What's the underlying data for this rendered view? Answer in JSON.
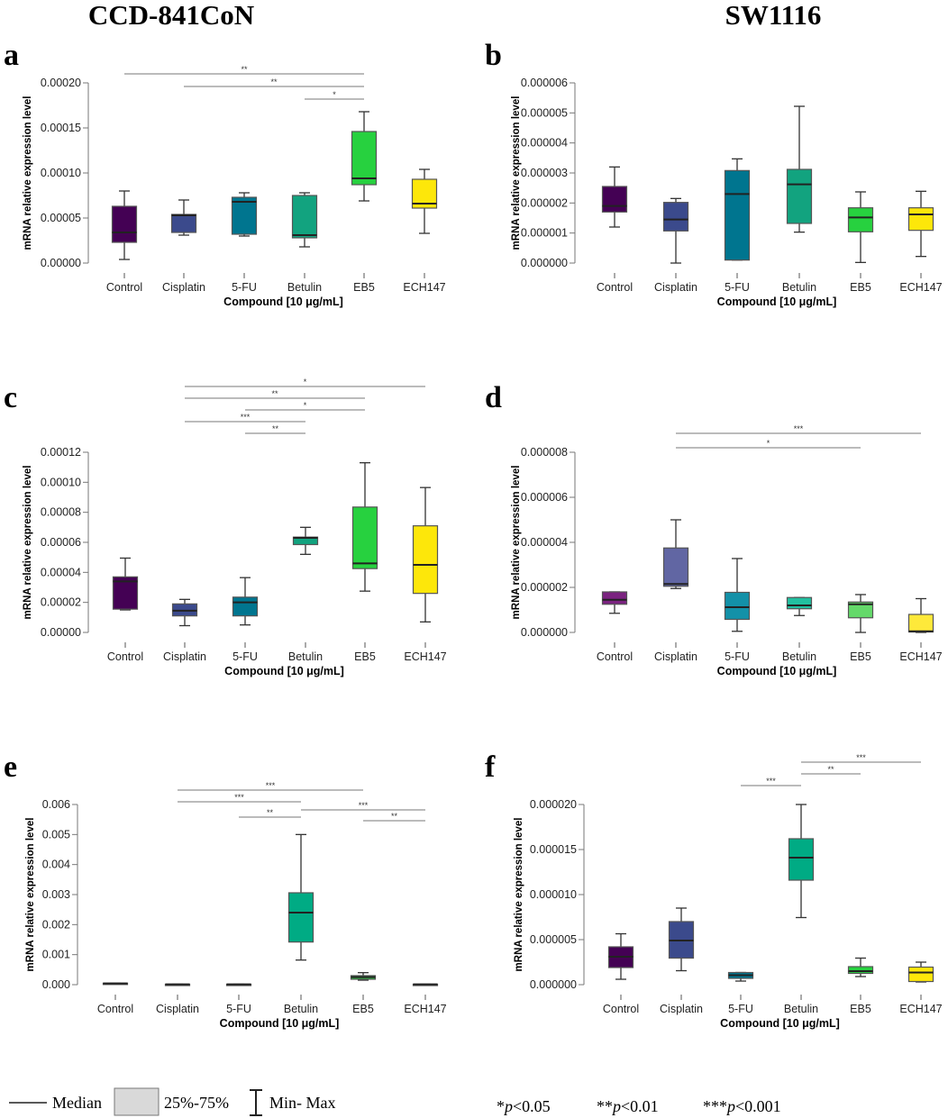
{
  "column_titles": [
    "CCD-841CoN",
    "SW1116"
  ],
  "legend": {
    "median": "Median",
    "iqr": "25%-75%",
    "range": "Min- Max",
    "sig": [
      {
        "stars": "*",
        "p": "p",
        "rest": "<0.05"
      },
      {
        "stars": "**",
        "p": "p",
        "rest": "<0.01"
      },
      {
        "stars": "***",
        "p": "p",
        "rest": "<0.001"
      }
    ]
  },
  "chart_data": [
    {
      "panel": "a",
      "type": "box",
      "cell_line": "CCD-841CoN",
      "ylabel": "mRNA relative expression level",
      "xlabel": "Compound [10 μg/mL]",
      "categories": [
        "Control",
        "Cisplatin",
        "5-FU",
        "Betulin",
        "EB5",
        "ECH147"
      ],
      "ylim": [
        0,
        0.0002
      ],
      "yticks": [
        "0.00000",
        "0.00005",
        "0.00010",
        "0.00015",
        "0.00020"
      ],
      "colors": [
        "#440154",
        "#3b4a8c",
        "#00758f",
        "#12a37f",
        "#27d13f",
        "#fde70a"
      ],
      "boxes": [
        [
          4e-06,
          2.3e-05,
          3.4e-05,
          6.3e-05,
          8e-05
        ],
        [
          3.1e-05,
          3.4e-05,
          5.3e-05,
          5.4e-05,
          7e-05
        ],
        [
          3e-05,
          3.2e-05,
          6.8e-05,
          7.3e-05,
          7.8e-05
        ],
        [
          1.8e-05,
          2.8e-05,
          3.1e-05,
          7.5e-05,
          7.8e-05
        ],
        [
          6.9e-05,
          8.7e-05,
          9.4e-05,
          0.000146,
          0.000168
        ],
        [
          3.3e-05,
          6.1e-05,
          6.6e-05,
          9.3e-05,
          0.000104
        ]
      ],
      "significance": [
        {
          "from": "Control",
          "to": "EB5",
          "label": "**"
        },
        {
          "from": "Cisplatin",
          "to": "EB5",
          "label": "**"
        },
        {
          "from": "Betulin",
          "to": "EB5",
          "label": "*"
        }
      ]
    },
    {
      "panel": "b",
      "type": "box",
      "cell_line": "SW1116",
      "ylabel": "mRNA relative expression level",
      "xlabel": "Compound [10 μg/mL]",
      "categories": [
        "Control",
        "Cisplatin",
        "5-FU",
        "Betulin",
        "EB5",
        "ECH147"
      ],
      "ylim": [
        0,
        6e-06
      ],
      "yticks": [
        "0.000000",
        "0.000001",
        "0.000002",
        "0.000003",
        "0.000004",
        "0.000005",
        "0.000006"
      ],
      "colors": [
        "#440154",
        "#3b4a8c",
        "#00758f",
        "#12a37f",
        "#27d13f",
        "#fde70a"
      ],
      "boxes": [
        [
          1.2e-06,
          1.7e-06,
          1.9e-06,
          2.55e-06,
          3.2e-06
        ],
        [
          0.0,
          1.07e-06,
          1.45e-06,
          2.02e-06,
          2.15e-06
        ],
        [
          1e-07,
          1e-07,
          2.3e-06,
          3.08e-06,
          3.47e-06
        ],
        [
          1.03e-06,
          1.32e-06,
          2.62e-06,
          3.12e-06,
          5.22e-06
        ],
        [
          2e-08,
          1.04e-06,
          1.52e-06,
          1.84e-06,
          2.37e-06
        ],
        [
          2.2e-07,
          1.09e-06,
          1.62e-06,
          1.84e-06,
          2.39e-06
        ]
      ],
      "significance": []
    },
    {
      "panel": "c",
      "type": "box",
      "cell_line": "CCD-841CoN",
      "ylabel": "mRNA relative expression level",
      "xlabel": "Compound [10 μg/mL]",
      "categories": [
        "Control",
        "Cisplatin",
        "5-FU",
        "Betulin",
        "EB5",
        "ECH147"
      ],
      "ylim": [
        0,
        0.00012
      ],
      "yticks": [
        "0.00000",
        "0.00002",
        "0.00004",
        "0.00006",
        "0.00008",
        "0.00010",
        "0.00012"
      ],
      "colors": [
        "#440154",
        "#3b4a8c",
        "#00758f",
        "#12a37f",
        "#27d13f",
        "#fde70a"
      ],
      "boxes": [
        [
          1.5e-05,
          1.55e-05,
          3.4e-05,
          3.7e-05,
          4.95e-05
        ],
        [
          4.5e-06,
          1.1e-05,
          1.45e-05,
          1.9e-05,
          2.2e-05
        ],
        [
          5e-06,
          1.1e-05,
          2e-05,
          2.35e-05,
          3.65e-05
        ],
        [
          5.2e-05,
          5.85e-05,
          6.3e-05,
          6.35e-05,
          7e-05
        ],
        [
          2.75e-05,
          4.25e-05,
          4.6e-05,
          8.35e-05,
          0.000113
        ],
        [
          7e-06,
          2.6e-05,
          4.5e-05,
          7.1e-05,
          9.65e-05
        ]
      ],
      "significance": [
        {
          "from": "Cisplatin",
          "to": "ECH147",
          "label": "*"
        },
        {
          "from": "Cisplatin",
          "to": "EB5",
          "label": "**"
        },
        {
          "from": "5-FU",
          "to": "EB5",
          "label": "*"
        },
        {
          "from": "Cisplatin",
          "to": "Betulin",
          "label": "***"
        },
        {
          "from": "5-FU",
          "to": "Betulin",
          "label": "**"
        }
      ]
    },
    {
      "panel": "d",
      "type": "box",
      "cell_line": "SW1116",
      "ylabel": "mRNA relative expression level",
      "xlabel": "Compound [10 μg/mL]",
      "categories": [
        "Control",
        "Cisplatin",
        "5-FU",
        "Betulin",
        "EB5",
        "ECH147"
      ],
      "ylim": [
        0,
        8e-06
      ],
      "yticks": [
        "0.000000",
        "0.000002",
        "0.000004",
        "0.000006",
        "0.000008"
      ],
      "colors": [
        "#7b2380",
        "#6166a3",
        "#1391a8",
        "#22c0a0",
        "#64d96a",
        "#fee93a"
      ],
      "boxes": [
        [
          8.5e-07,
          1.25e-06,
          1.45e-06,
          1.8e-06,
          1.8e-06
        ],
        [
          1.95e-06,
          2.05e-06,
          2.15e-06,
          3.75e-06,
          5e-06
        ],
        [
          5e-08,
          5.8e-07,
          1.12e-06,
          1.78e-06,
          3.28e-06
        ],
        [
          7.5e-07,
          1.05e-06,
          1.2e-06,
          1.55e-06,
          1.55e-06
        ],
        [
          0.0,
          6.5e-07,
          1.25e-06,
          1.35e-06,
          1.68e-06
        ],
        [
          0.0,
          2e-08,
          5e-08,
          8e-07,
          1.5e-06
        ]
      ],
      "significance": [
        {
          "from": "Cisplatin",
          "to": "ECH147",
          "label": "***"
        },
        {
          "from": "Cisplatin",
          "to": "EB5",
          "label": "*"
        }
      ]
    },
    {
      "panel": "e",
      "type": "box",
      "cell_line": "CCD-841CoN",
      "ylabel": "mRNA relative expression level",
      "xlabel": "Compound [10 μg/mL]",
      "categories": [
        "Control",
        "Cisplatin",
        "5-FU",
        "Betulin",
        "EB5",
        "ECH147"
      ],
      "ylim": [
        0,
        0.006
      ],
      "yticks": [
        "0.000",
        "0.001",
        "0.002",
        "0.003",
        "0.004",
        "0.005",
        "0.006"
      ],
      "colors": [
        "#440154",
        "#3b4a8c",
        "#00758f",
        "#00ab84",
        "#27d13f",
        "#fde70a"
      ],
      "boxes": [
        [
          3e-05,
          3e-05,
          4e-05,
          5e-05,
          5e-05
        ],
        [
          5e-06,
          5e-06,
          1e-05,
          1.5e-05,
          1.5e-05
        ],
        [
          5e-06,
          5e-06,
          1e-05,
          1.5e-05,
          1.5e-05
        ],
        [
          0.00082,
          0.00142,
          0.0024,
          0.00306,
          0.005
        ],
        [
          0.00015,
          0.00018,
          0.00025,
          0.0003,
          0.0004
        ],
        [
          5e-06,
          5e-06,
          1e-05,
          1.5e-05,
          1.5e-05
        ]
      ],
      "significance": [
        {
          "from": "Cisplatin",
          "to": "EB5",
          "label": "***"
        },
        {
          "from": "Cisplatin",
          "to": "Betulin",
          "label": "***"
        },
        {
          "from": "Betulin",
          "to": "ECH147",
          "label": "***"
        },
        {
          "from": "5-FU",
          "to": "Betulin",
          "label": "**"
        },
        {
          "from": "EB5",
          "to": "ECH147",
          "label": "**"
        }
      ]
    },
    {
      "panel": "f",
      "type": "box",
      "cell_line": "SW1116",
      "ylabel": "mRNA relative expression level",
      "xlabel": "Compound [10 μg/mL]",
      "categories": [
        "Control",
        "Cisplatin",
        "5-FU",
        "Betulin",
        "EB5",
        "ECH147"
      ],
      "ylim": [
        0,
        2e-05
      ],
      "yticks": [
        "0.000000",
        "0.000005",
        "0.000010",
        "0.000015",
        "0.000020"
      ],
      "colors": [
        "#440154",
        "#3b4a8c",
        "#00758f",
        "#00ab84",
        "#27d13f",
        "#fde70a"
      ],
      "boxes": [
        [
          6e-07,
          1.9e-06,
          3.1e-06,
          4.2e-06,
          5.65e-06
        ],
        [
          1.55e-06,
          2.95e-06,
          4.9e-06,
          7e-06,
          8.5e-06
        ],
        [
          4e-07,
          7e-07,
          1.05e-06,
          1.35e-06,
          1.35e-06
        ],
        [
          7.45e-06,
          1.16e-05,
          1.41e-05,
          1.62e-05,
          2e-05
        ],
        [
          9e-07,
          1.25e-06,
          1.5e-06,
          2e-06,
          2.95e-06
        ],
        [
          3e-07,
          3.5e-07,
          1.35e-06,
          1.95e-06,
          2.5e-06
        ]
      ],
      "significance": [
        {
          "from": "Betulin",
          "to": "ECH147",
          "label": "***"
        },
        {
          "from": "Betulin",
          "to": "EB5",
          "label": "**"
        },
        {
          "from": "5-FU",
          "to": "Betulin",
          "label": "***"
        }
      ]
    }
  ]
}
